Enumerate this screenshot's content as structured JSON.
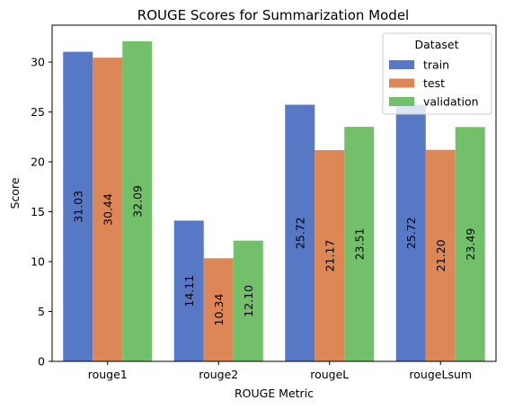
{
  "chart_data": {
    "type": "bar",
    "title": "ROUGE Scores for Summarization Model",
    "xlabel": "ROUGE Metric",
    "ylabel": "Score",
    "categories": [
      "rouge1",
      "rouge2",
      "rougeL",
      "rougeLsum"
    ],
    "ylim": [
      0,
      33.7
    ],
    "yticks": [
      0,
      5,
      10,
      15,
      20,
      25,
      30
    ],
    "grid": false,
    "legend": {
      "title": "Dataset",
      "placement": "top-right"
    },
    "series": [
      {
        "name": "train",
        "color": "#5778c4",
        "values": [
          31.03,
          14.11,
          25.72,
          25.72
        ],
        "labels": [
          "31.03",
          "14.11",
          "25.72",
          "25.72"
        ]
      },
      {
        "name": "test",
        "color": "#dd8656",
        "values": [
          30.44,
          10.34,
          21.17,
          21.2
        ],
        "labels": [
          "30.44",
          "10.34",
          "21.17",
          "21.20"
        ]
      },
      {
        "name": "validation",
        "color": "#73c06b",
        "values": [
          32.09,
          12.1,
          23.51,
          23.49
        ],
        "labels": [
          "32.09",
          "12.10",
          "23.51",
          "23.49"
        ]
      }
    ]
  }
}
